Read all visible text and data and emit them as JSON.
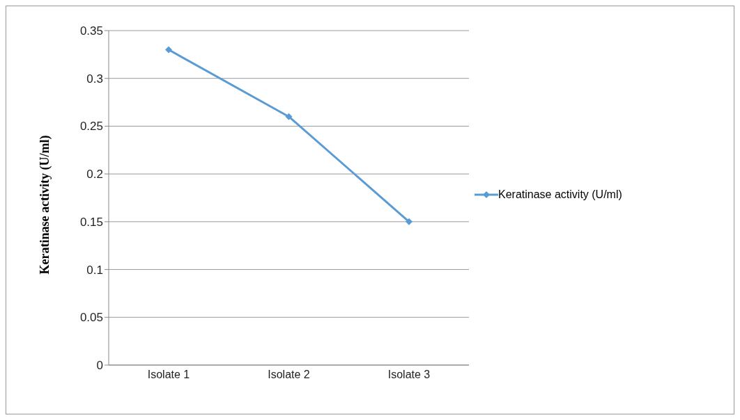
{
  "chart_data": {
    "type": "line",
    "ylabel": "Keratinase activity (U/ml)",
    "categories": [
      "Isolate 1",
      "Isolate 2",
      "Isolate 3"
    ],
    "series": [
      {
        "name": "Keratinase activity (U/ml)",
        "color": "#5b9bd5",
        "values": [
          0.33,
          0.26,
          0.15
        ]
      }
    ],
    "ylim": [
      0,
      0.35
    ],
    "yticks": [
      0,
      0.05,
      0.1,
      0.15,
      0.2,
      0.25,
      0.3,
      0.35
    ],
    "grid": "y",
    "legend": "right",
    "marker": "diamond",
    "line_style": "solid"
  }
}
